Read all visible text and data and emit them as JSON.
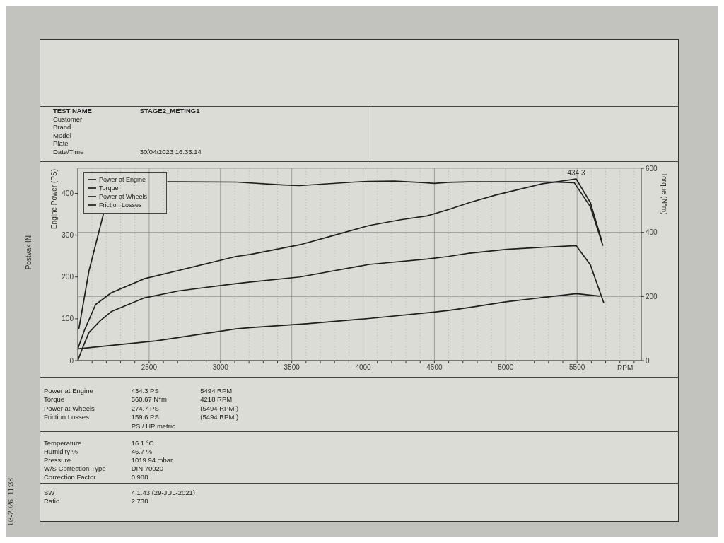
{
  "chart_data": {
    "type": "line",
    "xlabel": "RPM",
    "ylabel": "Engine Power (PS)",
    "y2label": "Torque (N*m)",
    "xlim": [
      2000,
      5950
    ],
    "xticks": [
      {
        "value": 2100,
        "label": null
      },
      {
        "value": 2200,
        "label": null
      },
      {
        "value": 2300,
        "label": null
      },
      {
        "value": 2400,
        "label": null
      },
      2500,
      {
        "value": 2600,
        "label": null
      },
      {
        "value": 2700,
        "label": null
      },
      {
        "value": 2800,
        "label": null
      },
      {
        "value": 2900,
        "label": null
      },
      3000,
      {
        "value": 3100,
        "label": null
      },
      {
        "value": 3200,
        "label": null
      },
      {
        "value": 3300,
        "label": null
      },
      {
        "value": 3400,
        "label": null
      },
      3500,
      {
        "value": 3600,
        "label": null
      },
      {
        "value": 3700,
        "label": null
      },
      {
        "value": 3800,
        "label": null
      },
      {
        "value": 3900,
        "label": null
      },
      4000,
      {
        "value": 4100,
        "label": null
      },
      {
        "value": 4200,
        "label": null
      },
      {
        "value": 4300,
        "label": null
      },
      {
        "value": 4400,
        "label": null
      },
      4500,
      {
        "value": 4600,
        "label": null
      },
      {
        "value": 4700,
        "label": null
      },
      {
        "value": 4800,
        "label": null
      },
      {
        "value": 4900,
        "label": null
      },
      5000,
      {
        "value": 5100,
        "label": null
      },
      {
        "value": 5200,
        "label": null
      },
      {
        "value": 5300,
        "label": null
      },
      {
        "value": 5400,
        "label": null
      },
      5500,
      {
        "value": 5600,
        "label": null
      },
      {
        "value": 5700,
        "label": null
      },
      {
        "value": 5800,
        "label": null
      },
      {
        "value": 5900,
        "label": null
      }
    ],
    "ylim": [
      0,
      460
    ],
    "yticks": [
      0,
      100,
      200,
      300,
      400
    ],
    "y2lim": [
      0,
      600
    ],
    "y2ticks": [
      0,
      200,
      400,
      600
    ],
    "grid": true,
    "legend": "top left",
    "line_style": "solid",
    "series": [
      {
        "name": "Power at Engine",
        "color": "#1e1e1e",
        "x": [
          2000,
          2047,
          2125,
          2234,
          2467,
          2713,
          3110,
          3209,
          3556,
          3769,
          4042,
          4265,
          4448,
          4597,
          4746,
          4929,
          5257,
          5494,
          5593,
          5670
        ],
        "values": [
          28,
          73,
          134,
          162,
          196,
          216,
          249,
          254,
          277,
          297,
          323,
          337,
          346,
          361,
          378,
          396,
          423,
          434.3,
          378,
          290
        ]
      },
      {
        "name": "Torque",
        "color": "#1e1e1e",
        "axis": "y2",
        "x": [
          2008,
          2078,
          2179,
          2400,
          2630,
          3110,
          3442,
          3556,
          3938,
          4037,
          4218,
          4434,
          4498,
          4597,
          4746,
          5177,
          5326,
          5480,
          5593,
          5680
        ],
        "values": [
          100,
          279,
          456,
          null,
          558,
          557,
          548,
          546,
          557,
          559,
          560,
          555,
          553,
          556,
          558,
          558,
          557,
          555,
          480,
          360
        ]
      },
      {
        "name": "Power at Wheels",
        "color": "#1e1e1e",
        "x": [
          2000,
          2031,
          2078,
          2156,
          2234,
          2467,
          2713,
          3110,
          3209,
          3556,
          4042,
          4448,
          4597,
          4746,
          5009,
          5257,
          5494,
          5593,
          5686
        ],
        "values": [
          0,
          28,
          67,
          95,
          117,
          150,
          167,
          184,
          188,
          200,
          230,
          243,
          249,
          257,
          266,
          271,
          275,
          229,
          139
        ]
      },
      {
        "name": "Friction Losses",
        "color": "#1e1e1e",
        "x": [
          2000,
          2548,
          3110,
          3209,
          3606,
          4052,
          4498,
          4597,
          4746,
          5009,
          5494,
          5660
        ],
        "values": [
          28,
          47,
          76,
          79,
          88,
          101,
          116,
          120,
          127,
          141,
          160,
          154
        ]
      }
    ],
    "annotations": [
      {
        "text": "434.3",
        "x": 5494,
        "y": 434.3
      },
      "TEST NAME\tSTAGE2_METING1",
      "Customer",
      "Brand",
      "Model",
      "Plate",
      "Date/Time\t30/04/2023 16:33:14",
      "Power at Engine\t434.3 PS\t5494 RPM",
      "Torque\t560.67 N*m\t4218 RPM",
      "Power at Wheels\t274.7 PS\t(5494 RPM )",
      "Friction Losses\t159.6 PS\t(5494 RPM )",
      "\tPS / HP metric",
      "Temperature\t16.1 °C",
      "Humidity %\t46.7 %",
      "Pressure\t1019.94 mbar",
      "W/S Correction Type\tDIN 70020",
      "Correction Factor\t0.988",
      "SW\t4.1.43 (29-JUL-2021)",
      "Ratio\t2.738",
      "Postvak IN",
      "03-2026, 11:38"
    ]
  }
}
